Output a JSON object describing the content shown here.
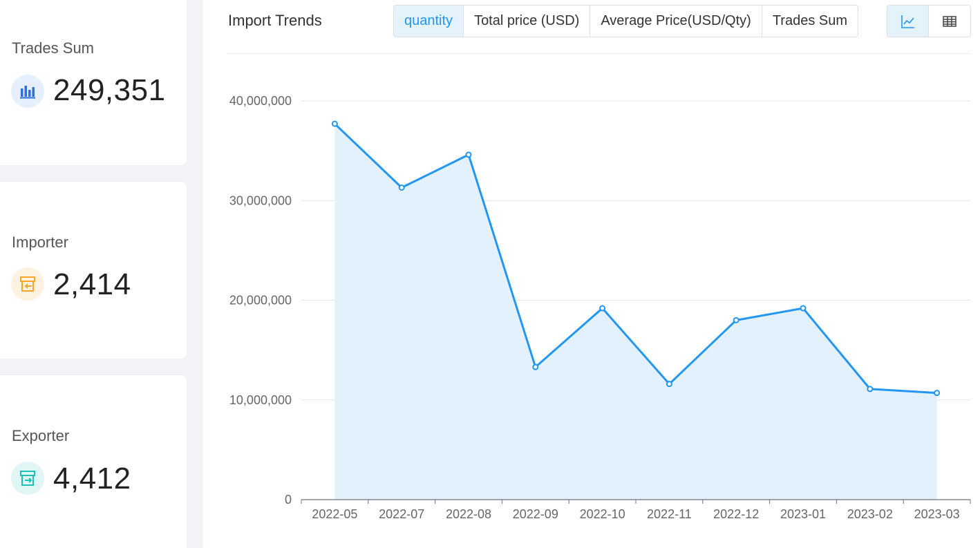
{
  "stats": [
    {
      "label": "Trades Sum",
      "value": "249,351",
      "icon": "bar-chart-icon",
      "icon_color": "#2f6fde",
      "icon_bg": "#e6effc"
    },
    {
      "label": "Importer",
      "value": "2,414",
      "icon": "store-import-icon",
      "icon_color": "#f5a623",
      "icon_bg": "#fdf2e0"
    },
    {
      "label": "Exporter",
      "value": "4,412",
      "icon": "store-export-icon",
      "icon_color": "#1fbfb8",
      "icon_bg": "#e0f7f5"
    }
  ],
  "panel": {
    "title": "Import Trends",
    "metric_tabs": [
      "quantity",
      "Total price (USD)",
      "Average Price(USD/Qty)",
      "Trades Sum"
    ],
    "active_tab": "quantity",
    "view_buttons": [
      "line-chart-icon",
      "table-icon"
    ],
    "active_view": "line-chart-icon"
  },
  "colors": {
    "accent": "#2196f3",
    "area_fill": "#e3f1fd",
    "grid": "#e1e4ee"
  },
  "chart_data": {
    "type": "area",
    "categories": [
      "2022-05",
      "2022-07",
      "2022-08",
      "2022-09",
      "2022-10",
      "2022-11",
      "2022-12",
      "2023-01",
      "2023-02",
      "2023-03"
    ],
    "values": [
      37700000,
      31300000,
      34600000,
      13300000,
      19200000,
      11600000,
      18000000,
      19200000,
      11100000,
      10700000
    ],
    "ylim": [
      0,
      40000000
    ],
    "yticks": [
      0,
      10000000,
      20000000,
      30000000,
      40000000
    ],
    "ytick_labels": [
      "0",
      "10,000,000",
      "20,000,000",
      "30,000,000",
      "40,000,000"
    ],
    "grid": true
  }
}
